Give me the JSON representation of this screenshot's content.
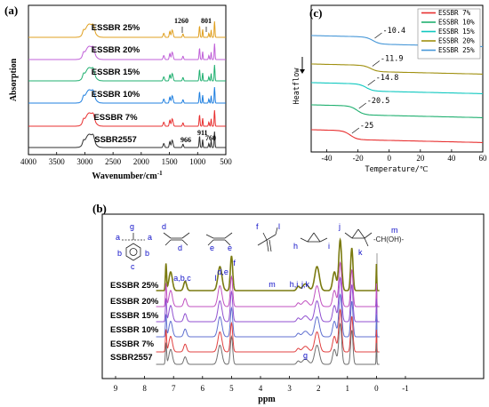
{
  "chart_data": [
    {
      "panel": "(a)",
      "type": "line",
      "xlabel": "Wavenumber/cm",
      "xlabel_sup": "-1",
      "ylabel": "Absorption",
      "xlim": [
        4000,
        500
      ],
      "xticks": [
        "4000",
        "3500",
        "3000",
        "2500",
        "2000",
        "1500",
        "1000",
        "500"
      ],
      "series": [
        {
          "name": "ESSBR 25%",
          "color": "#e0a020"
        },
        {
          "name": "ESSBR 20%",
          "color": "#c060d8"
        },
        {
          "name": "ESSBR 15%",
          "color": "#20b070"
        },
        {
          "name": "ESSBR 10%",
          "color": "#2080e0"
        },
        {
          "name": "ESSBR 7%",
          "color": "#e83030"
        },
        {
          "name": "SSBR2557",
          "color": "#303030"
        }
      ],
      "annotations": [
        "1260",
        "801",
        "966",
        "911",
        "760"
      ]
    },
    {
      "panel": "(c)",
      "type": "line",
      "xlabel": "Temperature/℃",
      "ylabel": "Heatflow",
      "xlim": [
        -50,
        60
      ],
      "xticks": [
        "-40",
        "-20",
        "0",
        "20",
        "40",
        "60"
      ],
      "legend_position": "top-right",
      "series": [
        {
          "name": "ESSBR 7%",
          "color": "#e83030",
          "tg": -25,
          "tg_label": "-25"
        },
        {
          "name": "ESSBR 10%",
          "color": "#20b070",
          "tg": -20.5,
          "tg_label": "-20.5"
        },
        {
          "name": "ESSBR 15%",
          "color": "#10c8c0",
          "tg": -14.8,
          "tg_label": "-14.8"
        },
        {
          "name": "ESSBR 20%",
          "color": "#a09010",
          "tg": -11.9,
          "tg_label": "-11.9"
        },
        {
          "name": "ESSBR 25%",
          "color": "#4898d8",
          "tg": -10.4,
          "tg_label": "-10.4"
        }
      ]
    },
    {
      "panel": "(b)",
      "type": "line",
      "xlabel": "ppm",
      "xlim": [
        9,
        -1
      ],
      "xticks": [
        "9",
        "8",
        "7",
        "6",
        "5",
        "4",
        "3",
        "2",
        "1",
        "0",
        "-1"
      ],
      "series": [
        {
          "name": "ESSBR 25%",
          "color": "#7a7a10"
        },
        {
          "name": "ESSBR 20%",
          "color": "#c050c0"
        },
        {
          "name": "ESSBR 15%",
          "color": "#9050d0"
        },
        {
          "name": "ESSBR 10%",
          "color": "#6070d0"
        },
        {
          "name": "ESSBR 7%",
          "color": "#e04040"
        },
        {
          "name": "SSBR2557",
          "color": "#707070"
        }
      ],
      "peak_labels": [
        {
          "text": "a,b,c",
          "ppm": 6.7
        },
        {
          "text": "l",
          "ppm": 5.55
        },
        {
          "text": "d,e",
          "ppm": 5.3
        },
        {
          "text": "f",
          "ppm": 4.9
        },
        {
          "text": "m",
          "ppm": 3.6
        },
        {
          "text": "h,i",
          "ppm": 2.85
        },
        {
          "text": "j,k",
          "ppm": 2.45
        },
        {
          "text": "g",
          "ppm": 2.45
        }
      ],
      "structure_labels": {
        "styrene": [
          "g",
          "a",
          "a",
          "b",
          "b",
          "c"
        ],
        "cis": [
          "d",
          "d"
        ],
        "trans": [
          "e",
          "e"
        ],
        "vinyl": [
          "f",
          "l"
        ],
        "epoxy1": [
          "h",
          "i"
        ],
        "epoxy2": [
          "j",
          "k"
        ],
        "hydroxyl": [
          "m",
          "-CH(OH)-"
        ]
      }
    }
  ]
}
